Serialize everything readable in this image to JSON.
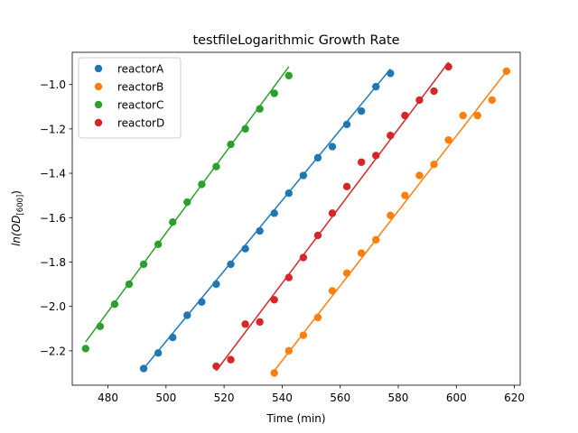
{
  "chart_data": {
    "type": "scatter",
    "title": "testfileLogarithmic Growth Rate",
    "xlabel": "Time (min)",
    "ylabel": "ln(OD[600])",
    "xlim": [
      467.7,
      622
    ],
    "ylim": [
      -2.355,
      -0.855
    ],
    "xticks": [
      480,
      500,
      520,
      540,
      560,
      580,
      600,
      620
    ],
    "xtick_labels": [
      "480",
      "500",
      "520",
      "540",
      "560",
      "580",
      "600",
      "620"
    ],
    "yticks": [
      -2.2,
      -2.0,
      -1.8,
      -1.6,
      -1.4,
      -1.2,
      -1.0
    ],
    "ytick_labels": [
      "−2.2",
      "−2.0",
      "−1.8",
      "−1.6",
      "−1.4",
      "−1.2",
      "−1.0"
    ],
    "grid": false,
    "legend_position": "upper-left",
    "series": [
      {
        "name": "reactorA",
        "color": "#1f77b4",
        "points": [
          [
            492.3,
            -2.28
          ],
          [
            497.3,
            -2.21
          ],
          [
            502.3,
            -2.14
          ],
          [
            507.3,
            -2.04
          ],
          [
            512.3,
            -1.98
          ],
          [
            517.3,
            -1.9
          ],
          [
            522.3,
            -1.81
          ],
          [
            527.3,
            -1.74
          ],
          [
            532.3,
            -1.66
          ],
          [
            537.3,
            -1.58
          ],
          [
            542.3,
            -1.49
          ],
          [
            547.3,
            -1.41
          ],
          [
            552.3,
            -1.33
          ],
          [
            557.3,
            -1.28
          ],
          [
            562.3,
            -1.18
          ],
          [
            567.3,
            -1.12
          ],
          [
            572.3,
            -1.01
          ],
          [
            577.3,
            -0.95
          ]
        ],
        "fit": [
          [
            492.3,
            -2.28
          ],
          [
            577.3,
            -0.93
          ]
        ]
      },
      {
        "name": "reactorB",
        "color": "#ff7f0e",
        "points": [
          [
            537.3,
            -2.3
          ],
          [
            542.3,
            -2.2
          ],
          [
            547.3,
            -2.13
          ],
          [
            552.3,
            -2.05
          ],
          [
            557.3,
            -1.93
          ],
          [
            562.3,
            -1.85
          ],
          [
            567.3,
            -1.76
          ],
          [
            572.3,
            -1.7
          ],
          [
            577.3,
            -1.59
          ],
          [
            582.3,
            -1.5
          ],
          [
            587.3,
            -1.41
          ],
          [
            592.3,
            -1.36
          ],
          [
            597.3,
            -1.25
          ],
          [
            602.3,
            -1.14
          ],
          [
            607.3,
            -1.14
          ],
          [
            612.3,
            -1.07
          ],
          [
            617.3,
            -0.94
          ]
        ],
        "fit": [
          [
            537.3,
            -2.29
          ],
          [
            617.3,
            -0.94
          ]
        ]
      },
      {
        "name": "reactorC",
        "color": "#2ca02c",
        "points": [
          [
            472.3,
            -2.19
          ],
          [
            477.3,
            -2.09
          ],
          [
            482.3,
            -1.99
          ],
          [
            487.3,
            -1.9
          ],
          [
            492.3,
            -1.81
          ],
          [
            497.3,
            -1.72
          ],
          [
            502.3,
            -1.62
          ],
          [
            507.3,
            -1.53
          ],
          [
            512.3,
            -1.45
          ],
          [
            517.3,
            -1.37
          ],
          [
            522.3,
            -1.27
          ],
          [
            527.3,
            -1.2
          ],
          [
            532.3,
            -1.11
          ],
          [
            537.3,
            -1.04
          ],
          [
            542.3,
            -0.96
          ]
        ],
        "fit": [
          [
            472.3,
            -2.16
          ],
          [
            542.3,
            -0.92
          ]
        ]
      },
      {
        "name": "reactorD",
        "color": "#d62728",
        "points": [
          [
            517.3,
            -2.27
          ],
          [
            522.3,
            -2.24
          ],
          [
            527.3,
            -2.08
          ],
          [
            532.3,
            -2.07
          ],
          [
            537.3,
            -1.97
          ],
          [
            542.3,
            -1.87
          ],
          [
            547.3,
            -1.78
          ],
          [
            552.3,
            -1.68
          ],
          [
            557.3,
            -1.58
          ],
          [
            562.3,
            -1.46
          ],
          [
            567.3,
            -1.35
          ],
          [
            572.3,
            -1.32
          ],
          [
            577.3,
            -1.23
          ],
          [
            582.3,
            -1.14
          ],
          [
            587.3,
            -1.07
          ],
          [
            592.3,
            -1.03
          ],
          [
            597.3,
            -0.92
          ]
        ],
        "fit": [
          [
            517.3,
            -2.29
          ],
          [
            597.3,
            -0.9
          ]
        ]
      }
    ]
  }
}
